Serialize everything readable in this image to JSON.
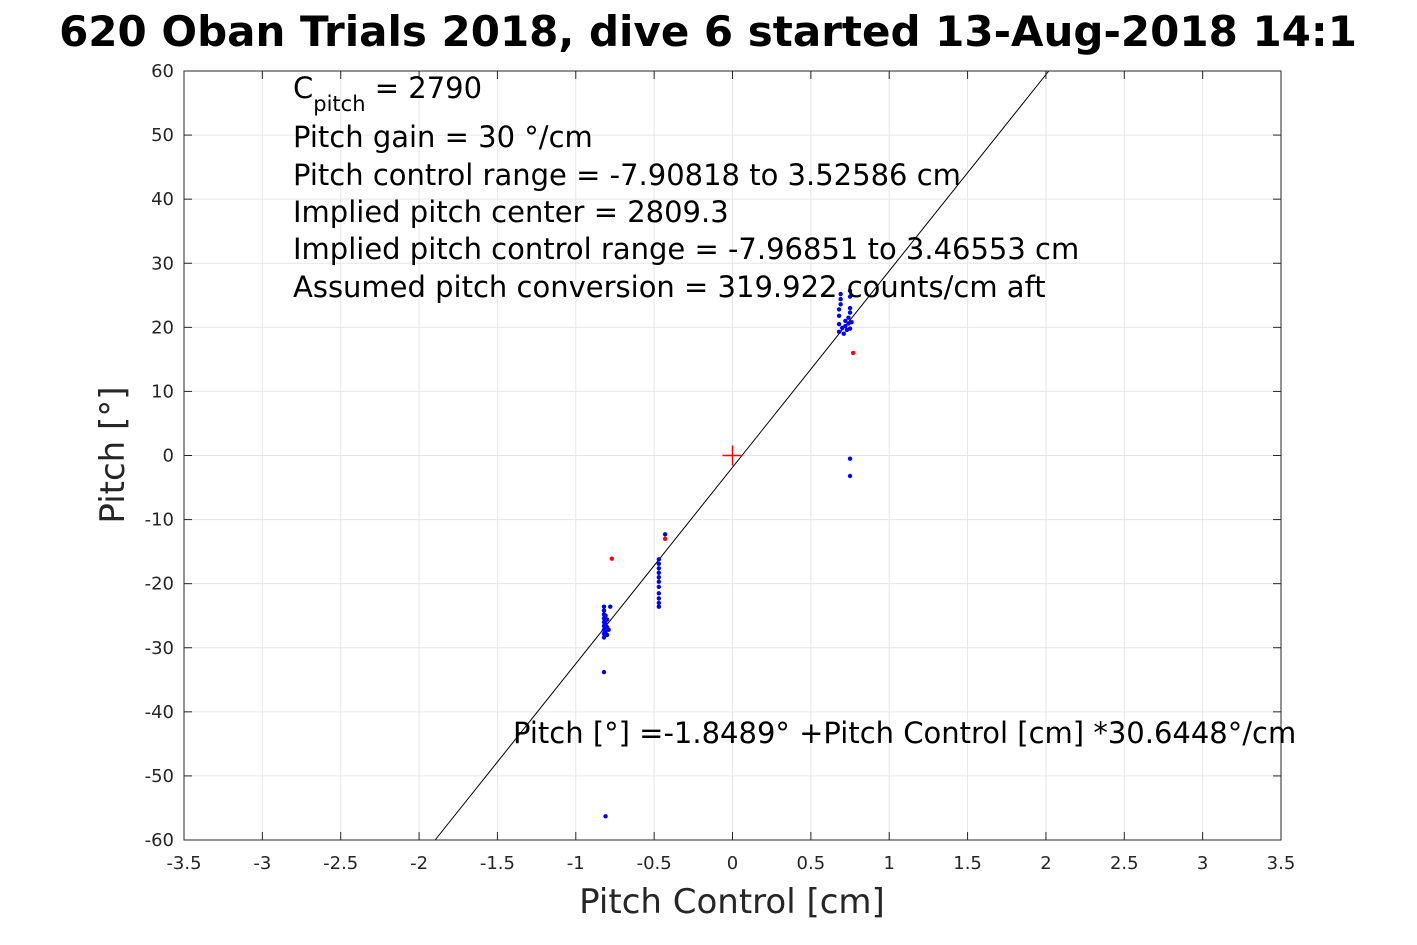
{
  "chart_data": {
    "type": "scatter",
    "title": "620 Oban Trials 2018, dive 6 started 13-Aug-2018 14:1",
    "xlabel": "Pitch Control [cm]",
    "ylabel": "Pitch [°]",
    "xlim": [
      -3.5,
      3.5
    ],
    "ylim": [
      -60,
      60
    ],
    "xticks": [
      -3.5,
      -3,
      -2.5,
      -2,
      -1.5,
      -1,
      -0.5,
      0,
      0.5,
      1,
      1.5,
      2,
      2.5,
      3,
      3.5
    ],
    "xtick_labels": [
      "-3.5",
      "-3",
      "-2.5",
      "-2",
      "-1.5",
      "-1",
      "-0.5",
      "0",
      "0.5",
      "1",
      "1.5",
      "2",
      "2.5",
      "3",
      "3.5"
    ],
    "yticks": [
      60,
      50,
      40,
      30,
      20,
      10,
      0,
      -10,
      -20,
      -30,
      -40,
      -50,
      -60
    ],
    "ytick_labels": [
      "60",
      "50",
      "40",
      "30",
      "20",
      "10",
      "0",
      "-10",
      "-20",
      "-30",
      "-40",
      "-50",
      "-60"
    ],
    "grid": true,
    "colors": {
      "blue": "#0000ff",
      "red": "#ff0000",
      "line": "#000000"
    },
    "fit_line": {
      "intercept": -1.8489,
      "slope": 30.6448
    },
    "center_marker": {
      "x": 0,
      "y": 0,
      "color": "#ff0000"
    },
    "series": [
      {
        "color": "#0000ff",
        "points": [
          [
            -0.82,
            -23.6
          ],
          [
            -0.82,
            -24.2
          ],
          [
            -0.82,
            -24.8
          ],
          [
            -0.82,
            -25.4
          ],
          [
            -0.82,
            -26.0
          ],
          [
            -0.82,
            -26.6
          ],
          [
            -0.82,
            -27.2
          ],
          [
            -0.82,
            -27.8
          ],
          [
            -0.82,
            -28.4
          ],
          [
            -0.81,
            -25.0
          ],
          [
            -0.81,
            -26.2
          ],
          [
            -0.81,
            -27.5
          ],
          [
            -0.8,
            -25.6
          ],
          [
            -0.8,
            -26.8
          ],
          [
            -0.8,
            -28.0
          ],
          [
            -0.79,
            -27.2
          ],
          [
            -0.78,
            -23.6
          ],
          [
            -0.82,
            -33.8
          ],
          [
            -0.81,
            -56.3
          ],
          [
            -0.47,
            -16.2
          ],
          [
            -0.47,
            -16.9
          ],
          [
            -0.47,
            -17.6
          ],
          [
            -0.47,
            -18.3
          ],
          [
            -0.47,
            -19.0
          ],
          [
            -0.47,
            -19.7
          ],
          [
            -0.47,
            -20.5
          ],
          [
            -0.47,
            -21.5
          ],
          [
            -0.47,
            -22.3
          ],
          [
            -0.47,
            -23.0
          ],
          [
            -0.47,
            -23.6
          ],
          [
            -0.43,
            -12.3
          ],
          [
            0.68,
            19.3
          ],
          [
            0.68,
            20.5
          ],
          [
            0.68,
            21.8
          ],
          [
            0.68,
            22.8
          ],
          [
            0.69,
            23.6
          ],
          [
            0.69,
            24.4
          ],
          [
            0.69,
            25.2
          ],
          [
            0.7,
            19.9
          ],
          [
            0.71,
            19.0
          ],
          [
            0.72,
            20.2
          ],
          [
            0.72,
            21.0
          ],
          [
            0.73,
            19.6
          ],
          [
            0.74,
            20.6
          ],
          [
            0.74,
            21.5
          ],
          [
            0.75,
            22.3
          ],
          [
            0.75,
            23.0
          ],
          [
            0.75,
            19.8
          ],
          [
            0.75,
            24.8
          ],
          [
            0.75,
            25.7
          ],
          [
            0.76,
            20.8
          ],
          [
            0.75,
            -0.5
          ],
          [
            0.75,
            -3.2
          ]
        ]
      },
      {
        "color": "#ff0000",
        "points": [
          [
            -0.77,
            -16.1
          ],
          [
            -0.43,
            -13.0
          ],
          [
            0.77,
            16.0
          ]
        ]
      }
    ],
    "annotations": {
      "cpitch_prefix": "C",
      "cpitch_sub": "pitch",
      "cpitch_value": " = 2790",
      "gain": "Pitch gain = 30 °/cm",
      "control_range": "Pitch control range = -7.90818 to 3.52586 cm",
      "implied_center": "Implied pitch center = 2809.3",
      "implied_range": "Implied pitch control range = -7.96851 to 3.46553 cm",
      "conversion": "Assumed pitch conversion = 319.922 counts/cm aft",
      "fit_equation": "Pitch [°] =-1.8489° +Pitch Control [cm] *30.6448°/cm"
    }
  }
}
